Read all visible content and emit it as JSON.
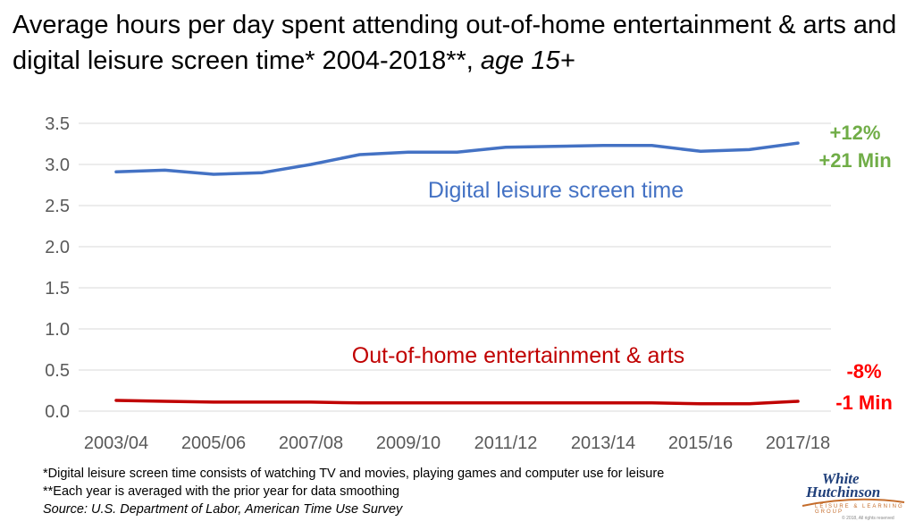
{
  "title": {
    "main": "Average hours per day spent attending out-of-home entertainment & arts and digital leisure screen time* 2004-2018**,",
    "subtitle": " age 15+"
  },
  "notes": {
    "line1": "*Digital leisure screen time consists of  watching TV and movies, playing games and computer use for leisure",
    "line2": " **Each year is averaged with the prior year for data smoothing",
    "source": "Source: U.S. Department of Labor, American Time Use Survey"
  },
  "logo": {
    "line1": "White",
    "line2": "Hutchinson",
    "tagline": "LEISURE & LEARNING GROUP",
    "copyright": "© 2018, All rights reserved"
  },
  "chart_data": {
    "type": "line",
    "x": [
      "2003/04",
      "2004/05",
      "2005/06",
      "2006/07",
      "2007/08",
      "2008/09",
      "2009/10",
      "2010/11",
      "2011/12",
      "2012/13",
      "2013/14",
      "2014/15",
      "2015/16",
      "2016/17",
      "2017/18"
    ],
    "x_tick_labels": [
      "2003/04",
      "2005/06",
      "2007/08",
      "2009/10",
      "2011/12",
      "2013/14",
      "2015/16",
      "2017/18"
    ],
    "y_tick_labels": [
      "0.0",
      "0.5",
      "1.0",
      "1.5",
      "2.0",
      "2.5",
      "3.0",
      "3.5"
    ],
    "ylim": [
      0,
      3.5
    ],
    "grid": "horizontal",
    "series": [
      {
        "name": "Digital leisure screen time",
        "color": "#4472c4",
        "values": [
          2.91,
          2.93,
          2.88,
          2.9,
          3.0,
          3.12,
          3.15,
          3.15,
          3.21,
          3.22,
          3.23,
          3.23,
          3.16,
          3.18,
          3.26
        ],
        "change_pct": "+12%",
        "change_min": "+21 Min",
        "change_color": "#70ad47"
      },
      {
        "name": "Out-of-home entertainment & arts",
        "color": "#c00000",
        "values": [
          0.13,
          0.12,
          0.11,
          0.11,
          0.11,
          0.1,
          0.1,
          0.1,
          0.1,
          0.1,
          0.1,
          0.1,
          0.09,
          0.09,
          0.12
        ],
        "change_pct": "-8%",
        "change_min": "-1 Min",
        "change_color": "#ff0000"
      }
    ]
  }
}
